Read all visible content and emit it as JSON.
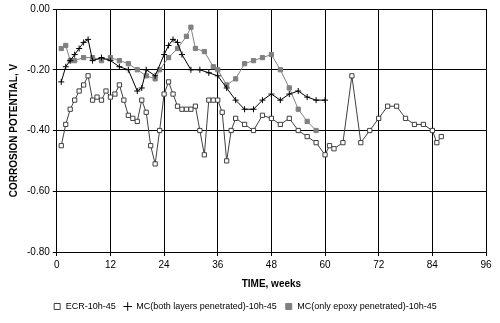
{
  "chart_data": {
    "type": "line",
    "x_label": "TIME, weeks",
    "y_label": "CORROSION POTENTIAL, V",
    "xlim": [
      0,
      96
    ],
    "xticks": [
      0,
      12,
      24,
      36,
      48,
      60,
      72,
      84,
      96
    ],
    "ylim": [
      -0.8,
      0
    ],
    "yticks": [
      {
        "value": -0.8,
        "label": "-0.80"
      },
      {
        "value": -0.6,
        "label": "-0.60"
      },
      {
        "value": -0.4,
        "label": "-0.40"
      },
      {
        "value": -0.2,
        "label": "-0.20"
      },
      {
        "value": 0,
        "label": "0.00"
      }
    ],
    "grid": true,
    "legend": "bottom",
    "series": [
      {
        "name": "ECR-10h-45",
        "color": "#404040",
        "marker": "square_open",
        "line_style": "solid",
        "x": [
          1,
          2,
          3,
          4,
          5,
          6,
          7,
          8,
          9,
          10,
          11,
          12,
          13,
          14,
          15,
          16,
          17,
          18,
          19,
          20,
          21,
          22,
          23,
          24,
          25,
          26,
          27,
          28,
          29,
          30,
          31,
          32,
          33,
          34,
          35,
          36,
          37,
          38,
          39,
          40,
          42,
          44,
          46,
          48,
          50,
          52,
          54,
          56,
          58,
          60,
          61,
          62,
          64,
          66,
          68,
          70,
          72,
          74,
          76,
          78,
          80,
          82,
          84,
          85,
          86
        ],
        "values": [
          -0.45,
          -0.38,
          -0.33,
          -0.3,
          -0.27,
          -0.25,
          -0.22,
          -0.3,
          -0.29,
          -0.3,
          -0.27,
          -0.29,
          -0.28,
          -0.25,
          -0.3,
          -0.35,
          -0.36,
          -0.37,
          -0.3,
          -0.34,
          -0.45,
          -0.51,
          -0.4,
          -0.28,
          -0.24,
          -0.28,
          -0.32,
          -0.33,
          -0.33,
          -0.33,
          -0.32,
          -0.4,
          -0.48,
          -0.3,
          -0.3,
          -0.3,
          -0.34,
          -0.5,
          -0.4,
          -0.36,
          -0.38,
          -0.4,
          -0.35,
          -0.36,
          -0.38,
          -0.36,
          -0.4,
          -0.42,
          -0.44,
          -0.48,
          -0.45,
          -0.46,
          -0.44,
          -0.22,
          -0.44,
          -0.4,
          -0.36,
          -0.32,
          -0.32,
          -0.36,
          -0.38,
          -0.38,
          -0.4,
          -0.44,
          -0.42
        ]
      },
      {
        "name": "MC(both layers penetrated)-10h-45",
        "color": "#000000",
        "marker": "plus",
        "line_style": "solid",
        "x": [
          1,
          2,
          3,
          4,
          5,
          6,
          7,
          8,
          10,
          12,
          14,
          16,
          18,
          19,
          20,
          22,
          24,
          25,
          26,
          27,
          28,
          30,
          32,
          34,
          36,
          38,
          40,
          42,
          44,
          46,
          48,
          50,
          52,
          54,
          56,
          58,
          60
        ],
        "values": [
          -0.24,
          -0.19,
          -0.17,
          -0.15,
          -0.13,
          -0.11,
          -0.1,
          -0.17,
          -0.16,
          -0.17,
          -0.19,
          -0.2,
          -0.27,
          -0.26,
          -0.2,
          -0.22,
          -0.15,
          -0.12,
          -0.1,
          -0.11,
          -0.15,
          -0.2,
          -0.2,
          -0.21,
          -0.22,
          -0.26,
          -0.3,
          -0.33,
          -0.33,
          -0.3,
          -0.28,
          -0.3,
          -0.28,
          -0.27,
          -0.29,
          -0.3,
          -0.3
        ]
      },
      {
        "name": "MC(only epoxy penetrated)-10h-45",
        "color": "#808080",
        "marker": "square",
        "line_style": "solid",
        "x": [
          1,
          2,
          3,
          4,
          6,
          8,
          10,
          12,
          14,
          16,
          18,
          20,
          22,
          23,
          25,
          27,
          29,
          30,
          31,
          33,
          35,
          36,
          38,
          40,
          42,
          44,
          46,
          48,
          50,
          52,
          54,
          56,
          58
        ],
        "values": [
          -0.13,
          -0.12,
          -0.17,
          -0.17,
          -0.16,
          -0.16,
          -0.17,
          -0.16,
          -0.17,
          -0.18,
          -0.2,
          -0.22,
          -0.23,
          -0.2,
          -0.16,
          -0.13,
          -0.09,
          -0.06,
          -0.13,
          -0.14,
          -0.19,
          -0.2,
          -0.25,
          -0.23,
          -0.18,
          -0.17,
          -0.16,
          -0.15,
          -0.2,
          -0.26,
          -0.33,
          -0.37,
          -0.4
        ]
      }
    ]
  }
}
